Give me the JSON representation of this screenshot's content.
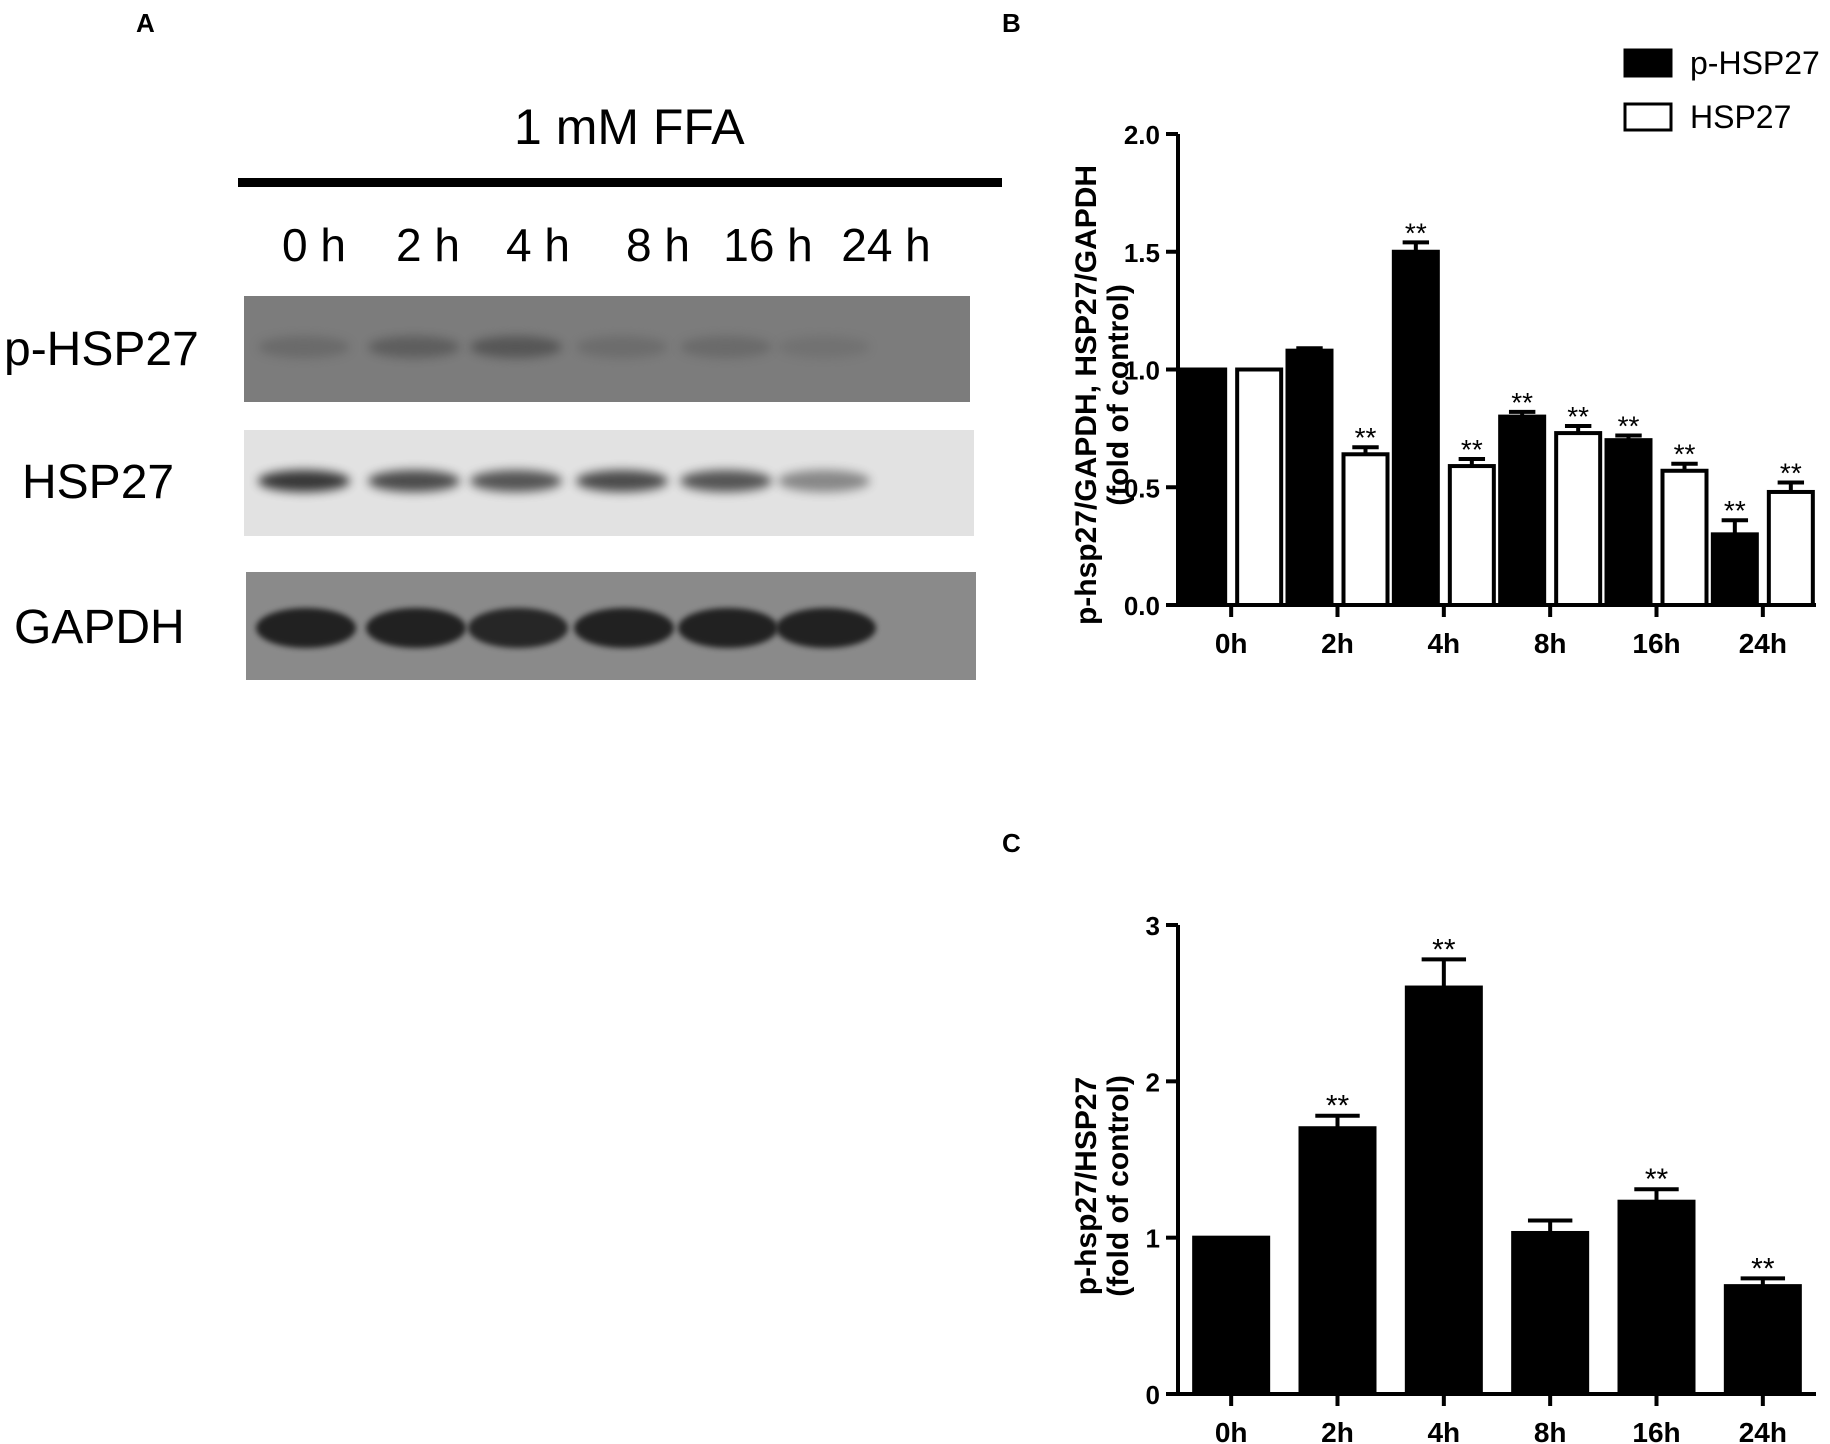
{
  "panel_labels": {
    "a": "A",
    "b": "B",
    "c": "C"
  },
  "blot": {
    "title": "1 mM  FFA",
    "lanes": [
      "0 h",
      "2 h",
      "4 h",
      "8 h",
      "16 h",
      "24 h"
    ],
    "rows": [
      {
        "label": "p-HSP27",
        "background": "#7c7c7c",
        "band_color": "#4a4a4a",
        "intensity": [
          0.35,
          0.6,
          0.75,
          0.3,
          0.35,
          0.2
        ]
      },
      {
        "label": "HSP27",
        "background": "#e2e2e2",
        "band_color": "#1a1a1a",
        "intensity": [
          0.85,
          0.75,
          0.7,
          0.75,
          0.7,
          0.45
        ]
      },
      {
        "label": "GAPDH",
        "background": "#8a8a8a",
        "band_color": "#1c1c1c",
        "intensity": [
          0.95,
          0.95,
          0.9,
          0.95,
          0.95,
          0.95
        ]
      }
    ]
  },
  "chart_data": [
    {
      "panel": "B",
      "type": "bar",
      "categories": [
        "0h",
        "2h",
        "4h",
        "8h",
        "16h",
        "24h"
      ],
      "ylabel_line1": "p-hsp27/GAPDH, HSP27/GAPDH",
      "ylabel_line2": "(fold of control)",
      "ylim": [
        0,
        2.0
      ],
      "yticks": [
        "0.0",
        "0.5",
        "1.0",
        "1.5",
        "2.0"
      ],
      "legend_position": "top-right",
      "series": [
        {
          "name": "p-HSP27",
          "fill": "#000000",
          "values": [
            1.0,
            1.08,
            1.5,
            0.8,
            0.7,
            0.3
          ],
          "errors": [
            0.0,
            0.01,
            0.04,
            0.02,
            0.02,
            0.06
          ],
          "significance": [
            "",
            "",
            "**",
            "**",
            "**",
            "**"
          ]
        },
        {
          "name": "HSP27",
          "fill": "#ffffff",
          "values": [
            1.0,
            0.64,
            0.59,
            0.73,
            0.57,
            0.48
          ],
          "errors": [
            0.0,
            0.03,
            0.03,
            0.03,
            0.03,
            0.04
          ],
          "significance": [
            "",
            "**",
            "**",
            "**",
            "**",
            "**"
          ]
        }
      ]
    },
    {
      "panel": "C",
      "type": "bar",
      "categories": [
        "0h",
        "2h",
        "4h",
        "8h",
        "16h",
        "24h"
      ],
      "ylabel_line1": "p-hsp27/HSP27",
      "ylabel_line2": "(fold of control)",
      "ylim": [
        0,
        3
      ],
      "yticks": [
        "0",
        "1",
        "2",
        "3"
      ],
      "series": [
        {
          "name": "",
          "fill": "#000000",
          "values": [
            1.0,
            1.7,
            2.6,
            1.03,
            1.23,
            0.69
          ],
          "errors": [
            0.0,
            0.08,
            0.18,
            0.08,
            0.08,
            0.05
          ],
          "significance": [
            "",
            "**",
            "**",
            "",
            "**",
            "**"
          ]
        }
      ]
    }
  ]
}
